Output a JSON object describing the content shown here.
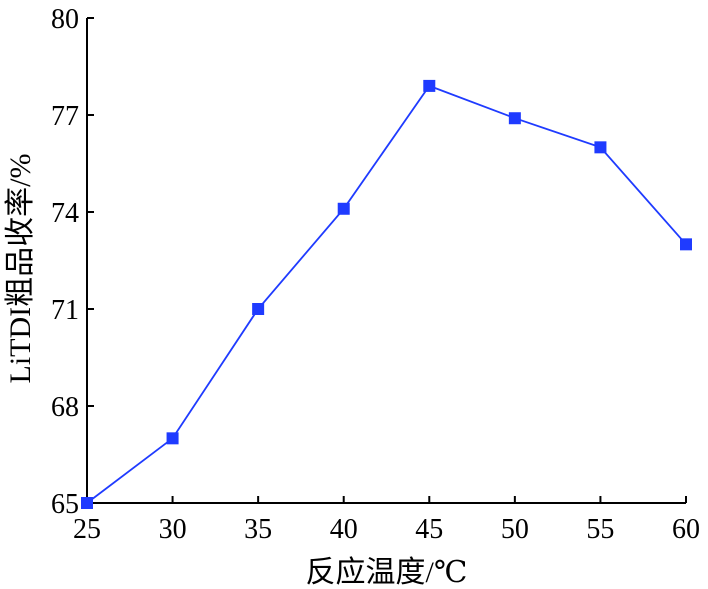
{
  "chart_data": {
    "type": "line",
    "title": "",
    "xlabel": "反应温度/℃",
    "ylabel": "LiTDI粗品收率/%",
    "x": [
      25,
      30,
      35,
      40,
      45,
      50,
      55,
      60
    ],
    "series": [
      {
        "values": [
          65,
          67,
          71,
          74.1,
          77.9,
          76.9,
          76,
          73
        ],
        "color": "#1f3bff",
        "marker": "square"
      }
    ],
    "xlim": [
      25,
      60
    ],
    "ylim": [
      65,
      80
    ],
    "xticks": [
      25,
      30,
      35,
      40,
      45,
      50,
      55,
      60
    ],
    "yticks": [
      65,
      68,
      71,
      74,
      77,
      80
    ],
    "xtick_labels": [
      "25",
      "30",
      "35",
      "40",
      "45",
      "50",
      "55",
      "60"
    ],
    "ytick_labels": [
      "65",
      "68",
      "71",
      "74",
      "77",
      "80"
    ],
    "grid": false,
    "legend": "none",
    "axis_color": "#000000"
  }
}
